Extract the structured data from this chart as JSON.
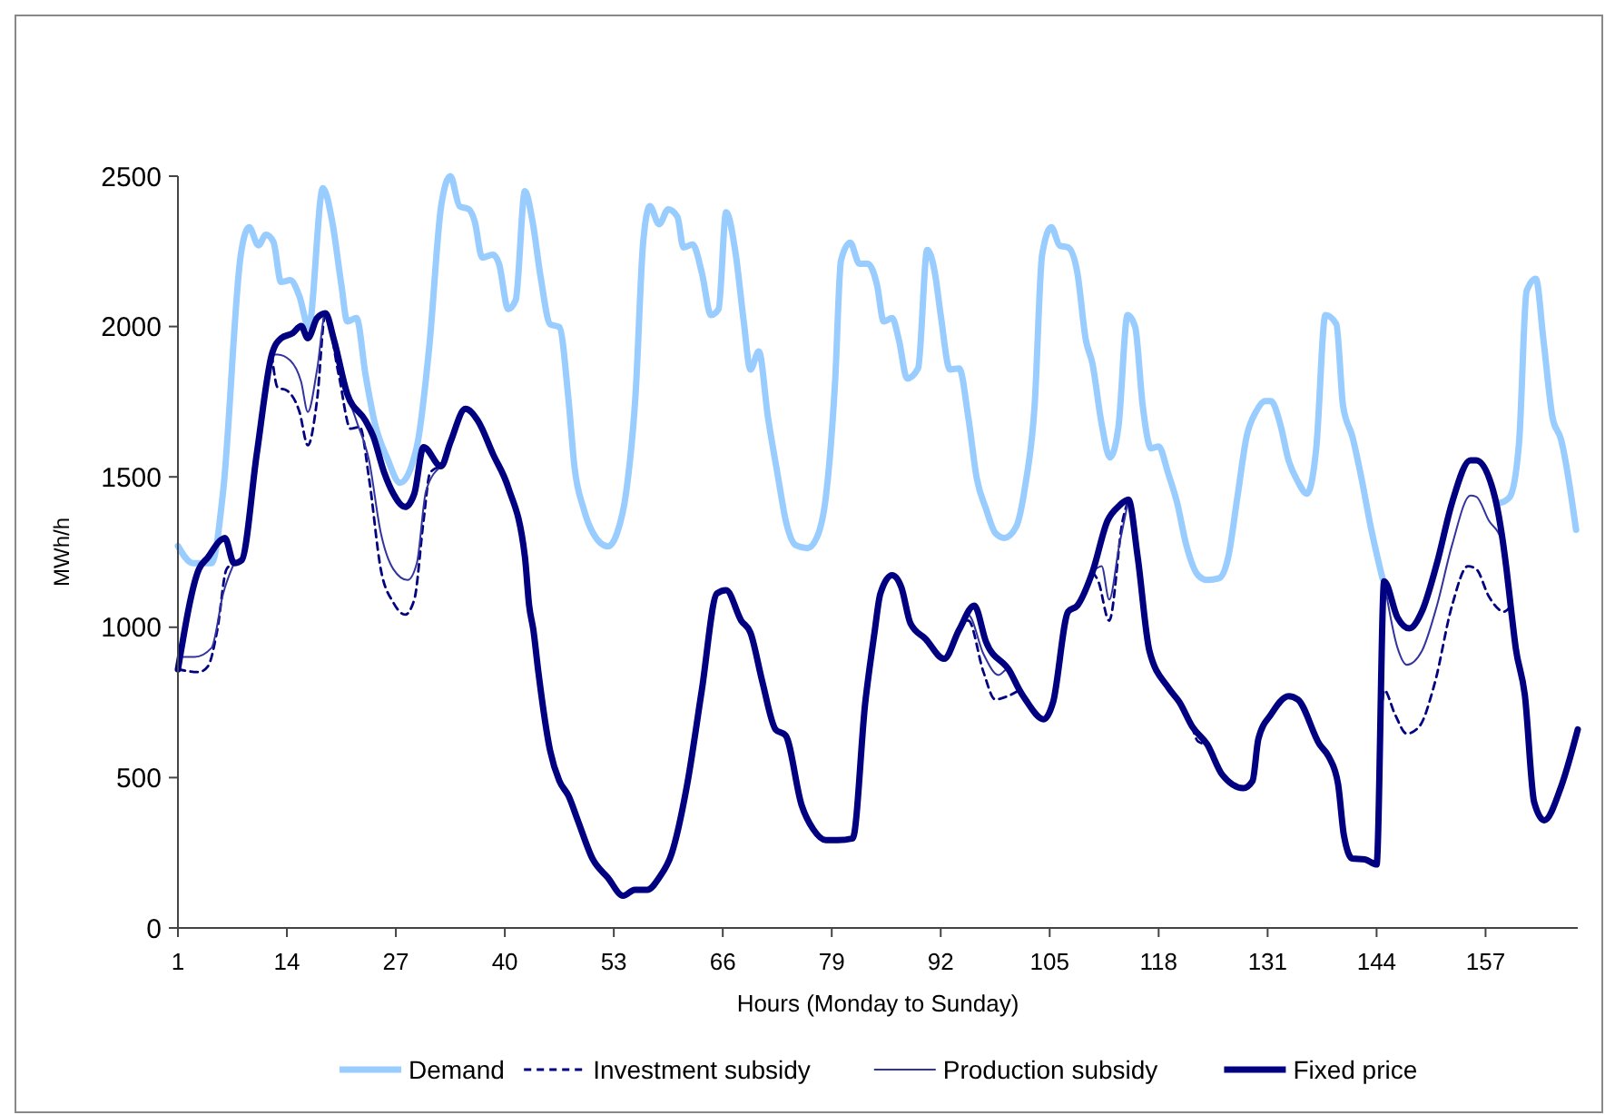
{
  "chart_data": {
    "type": "line",
    "xlabel": "Hours (Monday to Sunday)",
    "ylabel": "MWh/h",
    "xlim": [
      1,
      168
    ],
    "xticks": [
      1,
      14,
      27,
      40,
      53,
      66,
      79,
      92,
      105,
      118,
      131,
      144,
      157
    ],
    "ylim": [
      0,
      2500
    ],
    "yticks": [
      0,
      500,
      1000,
      1500,
      2000,
      2500
    ],
    "grid": false,
    "legend": "bottom",
    "series": [
      {
        "name": "Demand",
        "color": "#99ccff",
        "line_style": "solid",
        "x": [
          1,
          2.8,
          5,
          6.4,
          8.5,
          9.5,
          10.6,
          11.5,
          12.4,
          13.3,
          14.4,
          15.5,
          16.6,
          18.3,
          19.4,
          20.5,
          21.2,
          22.3,
          23.4,
          24.5,
          26,
          27.5,
          29.5,
          31,
          32.4,
          33.5,
          34.6,
          35.7,
          36.4,
          37.3,
          38.6,
          39.3,
          40.4,
          41.3,
          42.4,
          43.3,
          44.3,
          45.4,
          46.5,
          47.6,
          48.3,
          49.4,
          50.5,
          52.3,
          53.4,
          54.5,
          55.6,
          56.5,
          57.3,
          58.4,
          59.5,
          60.6,
          61.3,
          62.4,
          63.5,
          64.6,
          65.5,
          66.4,
          67.5,
          68.5,
          69.3,
          70.3,
          71.4,
          72.5,
          73.6,
          74.7,
          76.1,
          77.2,
          78.3,
          79.4,
          80.1,
          81.2,
          82.3,
          83.3,
          84.4,
          85.2,
          86.2,
          87,
          88,
          89.3,
          90.4,
          91.3,
          92,
          93.1,
          94.2,
          95.3,
          96.3,
          97.4,
          98.5,
          99.6,
          101,
          102.1,
          103.2,
          104.1,
          105.2,
          106.2,
          107.2,
          108.3,
          109.3,
          110.1,
          111.2,
          112.2,
          113.2,
          114.3,
          115.2,
          116.1,
          117.1,
          118,
          119.1,
          120.2,
          121.3,
          122.7,
          123.8,
          125.2,
          126.3,
          127.4,
          128.5,
          129.6,
          130.7,
          131.4,
          132.5,
          133.5,
          134.6,
          135.7,
          136.8,
          137.9,
          139.2,
          140,
          141.1,
          142.2,
          143.3,
          144.7,
          150,
          158.8,
          159.9,
          161,
          161.9,
          163,
          163.9,
          165,
          166,
          167.8
        ],
        "values": [
          1270,
          1213,
          1213,
          1454,
          2239,
          2330,
          2270,
          2305,
          2281,
          2148,
          2154,
          2100,
          1998,
          2460,
          2350,
          2138,
          2017,
          2028,
          1836,
          1677,
          1560,
          1480,
          1600,
          1937,
          2400,
          2500,
          2400,
          2390,
          2350,
          2229,
          2239,
          2209,
          2058,
          2088,
          2450,
          2350,
          2159,
          2008,
          1998,
          1756,
          1535,
          1394,
          1314,
          1269,
          1314,
          1454,
          1776,
          2279,
          2400,
          2340,
          2390,
          2364,
          2263,
          2273,
          2179,
          2038,
          2058,
          2380,
          2249,
          2017,
          1857,
          1917,
          1696,
          1515,
          1344,
          1273,
          1263,
          1297,
          1434,
          1816,
          2219,
          2279,
          2209,
          2209,
          2138,
          2017,
          2028,
          1957,
          1827,
          1861,
          2255,
          2179,
          2038,
          1857,
          1861,
          1696,
          1495,
          1394,
          1314,
          1297,
          1334,
          1474,
          1736,
          2239,
          2330,
          2269,
          2263,
          2179,
          1957,
          1877,
          1676,
          1565,
          1666,
          2038,
          1998,
          1736,
          1595,
          1601,
          1515,
          1414,
          1273,
          1173,
          1157,
          1163,
          1233,
          1434,
          1635,
          1716,
          1752,
          1752,
          1676,
          1555,
          1485,
          1444,
          1595,
          2038,
          2008,
          1736,
          1635,
          1495,
          1334,
          1163,
          null,
          1414,
          1434,
          1615,
          2118,
          2159,
          1957,
          1696,
          1625,
          1324
        ]
      },
      {
        "name": "Investment subsidy",
        "color": "#000080",
        "line_style": "dashed",
        "x": [
          1,
          3.5,
          4.6,
          5.7,
          6.8,
          7.7,
          10,
          12.2,
          12.9,
          14,
          15.5,
          16.5,
          17.6,
          18.6,
          20.2,
          21.6,
          22.7,
          23.8,
          25.2,
          26.7,
          28.1,
          29.2,
          30.3,
          31.1,
          32.4,
          60,
          94.2,
          95.3,
          97.1,
          98.5,
          100,
          101.4,
          105,
          110.1,
          110.8,
          112.1,
          113.7,
          114.4,
          118,
          122,
          122.7,
          123.8,
          130,
          144,
          144.9,
          146.2,
          147.6,
          149.1,
          150.9,
          153,
          154.9,
          155.9,
          157.4,
          159.2,
          160
        ],
        "values": [
          860,
          851,
          871,
          992,
          1193,
          1213,
          null,
          1907,
          1797,
          1787,
          1716,
          1605,
          1756,
          2044,
          1837,
          1660,
          1666,
          1495,
          1193,
          1082,
          1042,
          1092,
          1354,
          1515,
          1535,
          null,
          992,
          1022,
          851,
          760,
          771,
          791,
          null,
          1183,
          1153,
          1022,
          1354,
          1424,
          null,
          670,
          620,
          610,
          null,
          211,
          791,
          710,
          646,
          670,
          810,
          1072,
          1203,
          1193,
          1102,
          1052,
          1070
        ]
      },
      {
        "name": "Production subsidy",
        "color": "#3333a0",
        "line_style": "solid",
        "x": [
          1,
          1.4,
          3,
          5,
          6.4,
          7.7,
          10,
          12.2,
          12.9,
          14.4,
          15.7,
          16.5,
          17.6,
          18.6,
          20.2,
          22.3,
          23.8,
          25.2,
          26.7,
          28.4,
          29.5,
          30.6,
          32.4,
          60,
          94.2,
          95.3,
          97.1,
          98.9,
          100,
          101.4,
          105,
          110.1,
          111.2,
          112.1,
          113.3,
          114.4,
          118,
          144.9,
          146.5,
          147.6,
          149.4,
          151.2,
          153,
          155.2,
          155.9,
          157.4,
          158.8,
          160
        ],
        "values": [
          860,
          901,
          901,
          931,
          1112,
          1213,
          null,
          1907,
          1907,
          1887,
          1816,
          1716,
          1857,
          2044,
          1857,
          1686,
          1555,
          1314,
          1193,
          1157,
          1213,
          1454,
          1535,
          null,
          992,
          1040,
          911,
          841,
          861,
          791,
          null,
          1183,
          1203,
          1092,
          1273,
          1424,
          null,
          1153,
          931,
          875,
          921,
          1072,
          1273,
          1438,
          1434,
          1354,
          1297,
          1070
        ]
      },
      {
        "name": "Fixed price",
        "color": "#000080",
        "line_style": "solid",
        "x": [
          1,
          3.5,
          4.6,
          6.1,
          6.6,
          7.7,
          8.6,
          10.4,
          12.2,
          13.3,
          14.7,
          15.7,
          16.5,
          17.6,
          18.6,
          19.6,
          21.2,
          23.4,
          24.3,
          25.6,
          26.7,
          28.1,
          29.2,
          30.3,
          32.4,
          33.5,
          35.3,
          36.8,
          38.6,
          40.4,
          42.4,
          42.9,
          43.4,
          44,
          45.4,
          46.5,
          47.6,
          48.7,
          50.5,
          52.3,
          54.1,
          55.5,
          57,
          58.4,
          59.9,
          61.7,
          63.5,
          65.3,
          66.4,
          68.2,
          69.3,
          70.7,
          72.3,
          73.5,
          75.4,
          76.8,
          78.3,
          79.7,
          81.5,
          83,
          84.1,
          84.8,
          86.2,
          87.3,
          88.4,
          90.2,
          92.4,
          94.2,
          96,
          97.4,
          100.3,
          101.4,
          102.1,
          104.3,
          105.4,
          107.2,
          108.3,
          110.1,
          111.9,
          113.3,
          114.4,
          115.5,
          116.9,
          119.1,
          120.5,
          122,
          123.8,
          125.6,
          128.1,
          129.2,
          129.9,
          131.4,
          133.5,
          134.6,
          137.2,
          138.3,
          139.4,
          140.1,
          141.1,
          142.6,
          144,
          144.9,
          146.5,
          147.9,
          149.4,
          151.2,
          153,
          155.2,
          155.9,
          158.1,
          159.5,
          160,
          160.6,
          161.7,
          162.8,
          164,
          166,
          168
        ],
        "values": [
          860,
          1193,
          1233,
          1290,
          1297,
          1213,
          1223,
          1575,
          1907,
          1961,
          1978,
          2002,
          1961,
          2028,
          2044,
          1957,
          1776,
          1686,
          1635,
          1515,
          1444,
          1400,
          1444,
          1599,
          1535,
          1615,
          1726,
          1686,
          1575,
          1465,
          1233,
          1072,
          992,
          851,
          590,
          489,
          439,
          358,
          228,
          167,
          107,
          127,
          127,
          167,
          247,
          469,
          791,
          1112,
          1123,
          1022,
          982,
          821,
          660,
          640,
          409,
          328,
          292,
          292,
          298,
          750,
          982,
          1112,
          1173,
          1133,
          1012,
          961,
          895,
          992,
          1072,
          952,
          851,
          791,
          760,
          694,
          750,
          1052,
          1072,
          1183,
          1354,
          1404,
          1424,
          1233,
          921,
          801,
          750,
          670,
          610,
          509,
          465,
          489,
          629,
          710,
          771,
          760,
          610,
          569,
          479,
          308,
          231,
          228,
          211,
          1153,
          1032,
          996,
          1052,
          1213,
          1414,
          1555,
          1555,
          1434,
          1193,
          1070,
          931,
          771,
          418,
          358,
          469,
          660
        ]
      }
    ]
  }
}
